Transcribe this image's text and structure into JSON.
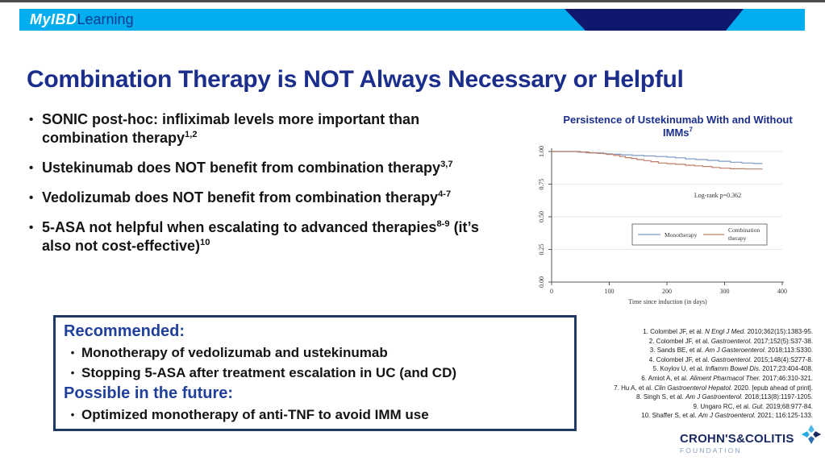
{
  "header": {
    "logo_left": "MyIBD",
    "logo_right": "Learning"
  },
  "title": "Combination Therapy is NOT Always Necessary or Helpful",
  "bullets": [
    {
      "segments": [
        {
          "t": "SONIC post-hoc: infliximab levels more important than combination therapy"
        },
        {
          "t": "1,2",
          "sup": true
        }
      ]
    },
    {
      "segments": [
        {
          "t": "Ustekinumab does NOT benefit from combination therapy"
        },
        {
          "t": "3,7",
          "sup": true
        }
      ]
    },
    {
      "segments": [
        {
          "t": "Vedolizumab does NOT benefit from combination therapy"
        },
        {
          "t": "4-7",
          "sup": true
        }
      ]
    },
    {
      "segments": [
        {
          "t": "5-ASA not helpful when escalating to advanced therapies"
        },
        {
          "t": "8-9",
          "sup": true
        },
        {
          "t": " (it’s also not cost-effective)"
        },
        {
          "t": "10",
          "sup": true
        }
      ]
    }
  ],
  "recommend_box": {
    "heading1": "Recommended:",
    "items1": [
      "Monotherapy of vedolizumab and ustekinumab",
      "Stopping 5-ASA after treatment escalation in UC (and CD)"
    ],
    "heading2": "Possible in the future:",
    "items2": [
      "Optimized monotherapy of anti-TNF to avoid IMM use"
    ]
  },
  "chart_data": {
    "type": "line",
    "subtype": "kaplan-meier-step",
    "title": "Persistence of Ustekinumab With and Without IMMs",
    "title_sup": "7",
    "xlabel": "Time since induction (in days)",
    "ylabel": "",
    "xlim": [
      0,
      400
    ],
    "ylim": [
      0,
      1
    ],
    "xticks": [
      0,
      100,
      200,
      300,
      400
    ],
    "yticks": [
      "0.00",
      "0.25",
      "0.50",
      "0.75",
      "1.00"
    ],
    "grid": true,
    "annotation": "Log-rank p=0.362",
    "legend_position": "center-inside-box",
    "series": [
      {
        "name": "Monotherapy",
        "color": "#7f9bc6",
        "points": [
          [
            0,
            1.0
          ],
          [
            30,
            1.0
          ],
          [
            45,
            0.995
          ],
          [
            60,
            0.99
          ],
          [
            75,
            0.988
          ],
          [
            90,
            0.983
          ],
          [
            105,
            0.979
          ],
          [
            120,
            0.975
          ],
          [
            140,
            0.97
          ],
          [
            160,
            0.966
          ],
          [
            180,
            0.962
          ],
          [
            200,
            0.957
          ],
          [
            215,
            0.952
          ],
          [
            232,
            0.944
          ],
          [
            250,
            0.938
          ],
          [
            270,
            0.932
          ],
          [
            290,
            0.925
          ],
          [
            310,
            0.918
          ],
          [
            330,
            0.912
          ],
          [
            350,
            0.908
          ],
          [
            365,
            0.905
          ]
        ]
      },
      {
        "name": "Combination therapy",
        "color": "#bd7d67",
        "points": [
          [
            0,
            1.0
          ],
          [
            35,
            1.0
          ],
          [
            50,
            0.996
          ],
          [
            65,
            0.99
          ],
          [
            80,
            0.985
          ],
          [
            95,
            0.978
          ],
          [
            108,
            0.97
          ],
          [
            118,
            0.962
          ],
          [
            128,
            0.953
          ],
          [
            138,
            0.947
          ],
          [
            148,
            0.938
          ],
          [
            160,
            0.93
          ],
          [
            172,
            0.922
          ],
          [
            185,
            0.912
          ],
          [
            200,
            0.907
          ],
          [
            215,
            0.902
          ],
          [
            232,
            0.895
          ],
          [
            248,
            0.89
          ],
          [
            262,
            0.885
          ],
          [
            278,
            0.878
          ],
          [
            292,
            0.872
          ],
          [
            310,
            0.868
          ],
          [
            335,
            0.866
          ],
          [
            365,
            0.864
          ]
        ]
      }
    ]
  },
  "references": {
    "items": [
      {
        "pre": "1. Colombel JF, et al. ",
        "italic": "N Engl J Med.",
        "post": " 2010;362(15):1383-95."
      },
      {
        "pre": "2. Colombel JF, et al. ",
        "italic": "Gastroenterol.",
        "post": " 2017;152(5):S37-38."
      },
      {
        "pre": "3. Sands BE, et al. ",
        "italic": "Am J Gasteroenterol.",
        "post": " 2018;113:S330."
      },
      {
        "pre": "4. Colombel JF, et al. ",
        "italic": "Gastroenterol.",
        "post": " 2015;148(4):S277-8."
      },
      {
        "pre": "5. Koylov U, et al. ",
        "italic": "Inflamm Bowel Dis.",
        "post": " 2017;23:404-408."
      },
      {
        "pre": "6. Amiot A, et al. ",
        "italic": "Aliment Pharmacol Ther.",
        "post": " 2017;46:310-321."
      },
      {
        "pre": "7. Hu A, et al. ",
        "italic": "Clin Gastroenterol Hepatol.",
        "post": " 2020. [epub ahead of print]."
      },
      {
        "pre": "8. Singh S, et al. ",
        "italic": "Am J Gastroenterol.",
        "post": " 2018;113(8):1197-1205."
      },
      {
        "pre": "9. Ungaro RC, et al. ",
        "italic": "Gut.",
        "post": " 2019;68:977-84."
      },
      {
        "pre": "10. Shaffer S, et al. ",
        "italic": "Am J Gastroenterol.",
        "post": " 2021; 116:125-133."
      }
    ]
  },
  "footer_logo": {
    "line1": "CROHN'S&COLITIS",
    "line2": "FOUNDATION"
  },
  "colors": {
    "banner_cyan": "#00aeef",
    "banner_navy": "#10186e",
    "title_blue": "#1b2e8b",
    "heading_blue": "#21409a",
    "box_border": "#1f3864",
    "foundation_navy": "#1b2a63",
    "foundation_gray": "#8aa0ba"
  }
}
